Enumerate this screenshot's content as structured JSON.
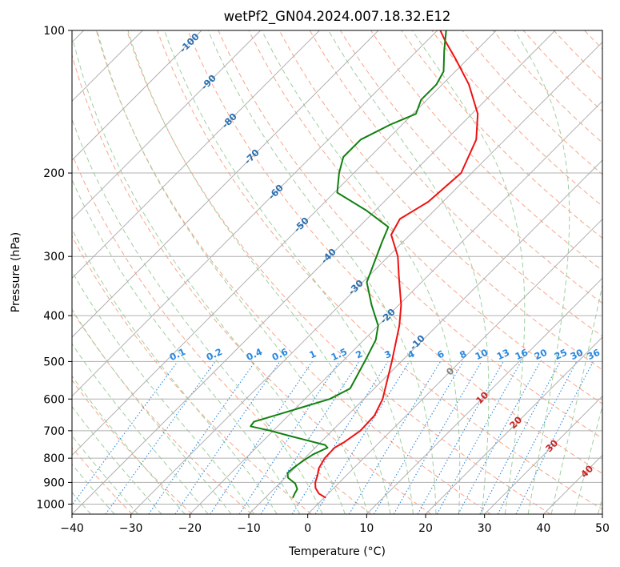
{
  "chart_data": {
    "type": "line",
    "chart_kind": "skew-T log-P sounding",
    "title": "wetPf2_GN04.2024.007.18.32.E12",
    "xlabel": "Temperature (°C)",
    "ylabel": "Pressure (hPa)",
    "xlim": [
      -40,
      50
    ],
    "ylim": [
      1050,
      100
    ],
    "y_scale": "log",
    "x_ticks": [
      "−40",
      "−30",
      "−20",
      "−10",
      "0",
      "10",
      "20",
      "30",
      "40",
      "50"
    ],
    "x_tick_values": [
      -40,
      -30,
      -20,
      -10,
      0,
      10,
      20,
      30,
      40,
      50
    ],
    "y_ticks": [
      "100",
      "200",
      "300",
      "400",
      "500",
      "600",
      "700",
      "800",
      "900",
      "1000"
    ],
    "y_tick_values": [
      100,
      200,
      300,
      400,
      500,
      600,
      700,
      800,
      900,
      1000
    ],
    "grid": true,
    "series": [
      {
        "role": "temperature",
        "color": "#ee1111",
        "points": [
          {
            "p": 970,
            "t": 0.3
          },
          {
            "p": 950,
            "t": -1.6
          },
          {
            "p": 925,
            "t": -3.1
          },
          {
            "p": 900,
            "t": -4.1
          },
          {
            "p": 870,
            "t": -4.9
          },
          {
            "p": 840,
            "t": -5.9
          },
          {
            "p": 800,
            "t": -6.6
          },
          {
            "p": 760,
            "t": -6.7
          },
          {
            "p": 740,
            "t": -6.0
          },
          {
            "p": 700,
            "t": -5.2
          },
          {
            "p": 650,
            "t": -5.4
          },
          {
            "p": 600,
            "t": -6.8
          },
          {
            "p": 500,
            "t": -11.6
          },
          {
            "p": 420,
            "t": -16.4
          },
          {
            "p": 380,
            "t": -19.6
          },
          {
            "p": 330,
            "t": -24.9
          },
          {
            "p": 300,
            "t": -28.4
          },
          {
            "p": 270,
            "t": -33.2
          },
          {
            "p": 250,
            "t": -34.4
          },
          {
            "p": 230,
            "t": -32.5
          },
          {
            "p": 200,
            "t": -31.8
          },
          {
            "p": 170,
            "t": -34.9
          },
          {
            "p": 150,
            "t": -39.0
          },
          {
            "p": 130,
            "t": -45.5
          },
          {
            "p": 115,
            "t": -52.0
          },
          {
            "p": 105,
            "t": -57.0
          },
          {
            "p": 100,
            "t": -59.5
          }
        ]
      },
      {
        "role": "dewpoint",
        "color": "#108010",
        "points": [
          {
            "p": 970,
            "t": -5.3
          },
          {
            "p": 950,
            "t": -5.7
          },
          {
            "p": 930,
            "t": -6.0
          },
          {
            "p": 905,
            "t": -7.3
          },
          {
            "p": 880,
            "t": -9.5
          },
          {
            "p": 860,
            "t": -10.4
          },
          {
            "p": 840,
            "t": -10.3
          },
          {
            "p": 810,
            "t": -9.8
          },
          {
            "p": 785,
            "t": -9.2
          },
          {
            "p": 760,
            "t": -7.9
          },
          {
            "p": 750,
            "t": -8.8
          },
          {
            "p": 720,
            "t": -15.8
          },
          {
            "p": 700,
            "t": -20.5
          },
          {
            "p": 685,
            "t": -24.6
          },
          {
            "p": 670,
            "t": -24.8
          },
          {
            "p": 650,
            "t": -22.3
          },
          {
            "p": 600,
            "t": -15.8
          },
          {
            "p": 570,
            "t": -14.1
          },
          {
            "p": 500,
            "t": -16.2
          },
          {
            "p": 450,
            "t": -18.0
          },
          {
            "p": 420,
            "t": -20.0
          },
          {
            "p": 380,
            "t": -24.6
          },
          {
            "p": 340,
            "t": -29.3
          },
          {
            "p": 310,
            "t": -31.3
          },
          {
            "p": 280,
            "t": -33.5
          },
          {
            "p": 260,
            "t": -35.0
          },
          {
            "p": 240,
            "t": -41.5
          },
          {
            "p": 220,
            "t": -49.5
          },
          {
            "p": 200,
            "t": -52.5
          },
          {
            "p": 185,
            "t": -54.5
          },
          {
            "p": 170,
            "t": -54.5
          },
          {
            "p": 158,
            "t": -52.0
          },
          {
            "p": 150,
            "t": -49.5
          },
          {
            "p": 140,
            "t": -51.0
          },
          {
            "p": 130,
            "t": -51.0
          },
          {
            "p": 122,
            "t": -52.0
          },
          {
            "p": 110,
            "t": -55.5
          },
          {
            "p": 100,
            "t": -58.5
          }
        ]
      }
    ],
    "dry_adiabat_labels": [
      "-100",
      "-90",
      "-80",
      "-70",
      "-60",
      "-50",
      "-40",
      "-30",
      "-20",
      "-10"
    ],
    "mixing_ratio_labels": [
      "0.1",
      "0.2",
      "0.4",
      "0.6",
      "1",
      "1.5",
      "2",
      "3",
      "4",
      "6",
      "8",
      "10",
      "13",
      "16",
      "20",
      "25",
      "30",
      "36"
    ],
    "moist_adiabat_labels": [
      "0",
      "10",
      "20",
      "30",
      "40"
    ],
    "colors": {
      "isotherm": "#b0b0b0",
      "isobar": "#b0b0b0",
      "dry_adiabat": "#f7a58a",
      "moist_adiabat": "#9ecf9e",
      "mixing_ratio": "#2a88e0",
      "dry_adiabat_label": "#2a6fb0",
      "mixing_ratio_label": "#2a88e0",
      "moist_adiabat_label": "#cc2222",
      "moist_adiabat_label_zero": "#808080",
      "brown_curve": "#c8a888"
    }
  }
}
